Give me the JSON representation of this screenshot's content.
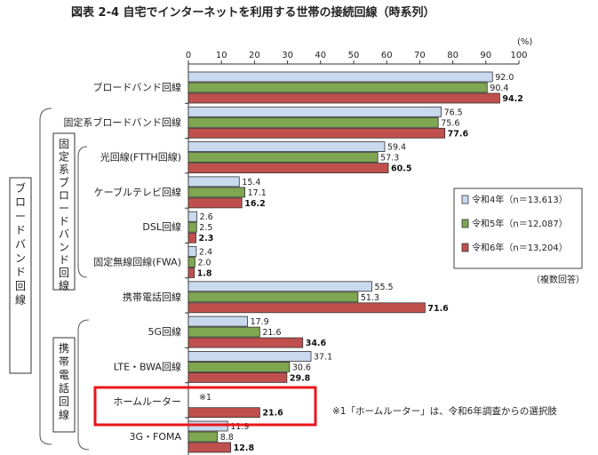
{
  "chart_data": {
    "type": "bar",
    "orientation": "horizontal",
    "title": "図表 2-4 自宅でインターネットを利用する世帯の接続回線（時系列）",
    "unit_label": "(%)",
    "xlim": [
      0,
      100
    ],
    "ticks": [
      0,
      10,
      20,
      30,
      40,
      50,
      60,
      70,
      80,
      90,
      100
    ],
    "categories": [
      "ブロードバンド回線",
      "固定系ブロードバンド回線",
      "光回線(FTTH回線)",
      "ケーブルテレビ回線",
      "DSL回線",
      "固定無線回線(FWA)",
      "携帯電話回線",
      "5G回線",
      "LTE・BWA回線",
      "ホームルーター",
      "3G・FOMA"
    ],
    "series": [
      {
        "name": "令和4年（n＝13,613）",
        "color": "#c9d9ee",
        "values": [
          92.0,
          76.5,
          59.4,
          15.4,
          2.6,
          2.4,
          55.5,
          17.9,
          37.1,
          null,
          11.9
        ],
        "labels": [
          "92.0",
          "76.5",
          "59.4",
          "15.4",
          "2.6",
          "2.4",
          "55.5",
          "17.9",
          "37.1",
          "",
          "11.9"
        ]
      },
      {
        "name": "令和5年（n＝12,087）",
        "color": "#7fa650",
        "values": [
          90.4,
          75.6,
          57.3,
          17.1,
          2.5,
          2.0,
          51.3,
          21.6,
          30.6,
          null,
          8.8
        ],
        "labels": [
          "90.4",
          "75.6",
          "57.3",
          "17.1",
          "2.5",
          "2.0",
          "51.3",
          "21.6",
          "30.6",
          "",
          "8.8"
        ]
      },
      {
        "name": "令和6年（n＝13,204）",
        "color": "#c0504d",
        "values": [
          94.2,
          77.6,
          60.5,
          16.2,
          2.3,
          1.8,
          71.6,
          34.6,
          29.8,
          21.6,
          12.8
        ],
        "labels": [
          "94.2",
          "77.6",
          "60.5",
          "16.2",
          "2.3",
          "1.8",
          "71.6",
          "34.6",
          "29.8",
          "21.6",
          "12.8"
        ]
      }
    ],
    "group_labels": [
      "ブロードバンド回線",
      "固定系ブロードバンド回線",
      "携帯電話回線"
    ],
    "legend_position": "right",
    "multiple_answer_note": "（複数回答）",
    "footnote_marker": "※1",
    "footnote": "※1「ホームルーター」は、令和6年調査からの選択肢",
    "highlight_category": "ホームルーター"
  }
}
